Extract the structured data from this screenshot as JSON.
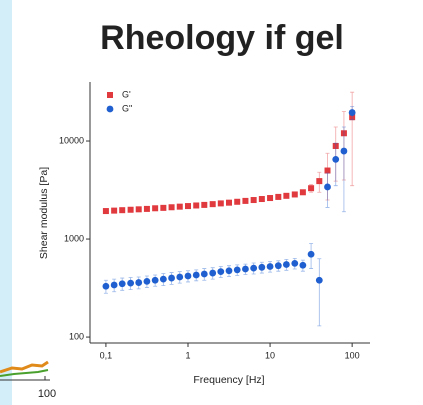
{
  "fragment_label": "100",
  "chart_data": {
    "type": "scatter",
    "title": "Rheology if gel",
    "x_label": "Frequency [Hz]",
    "y_label": "Shear modulus [Pa]",
    "x": [
      0.1,
      0.126,
      0.158,
      0.2,
      0.251,
      0.316,
      0.398,
      0.501,
      0.631,
      0.794,
      1,
      1.26,
      1.58,
      2,
      2.51,
      3.16,
      3.98,
      5.01,
      6.31,
      7.94,
      10,
      12.6,
      15.8,
      20,
      25.1,
      31.6,
      39.8,
      50.1,
      63.1,
      79.4,
      100
    ],
    "series": [
      {
        "name": "G'",
        "color": "#e0393e",
        "marker": "square",
        "values": [
          1930,
          1950,
          1970,
          1990,
          2010,
          2030,
          2060,
          2080,
          2110,
          2140,
          2170,
          2200,
          2230,
          2270,
          2310,
          2350,
          2400,
          2450,
          2500,
          2560,
          2620,
          2690,
          2760,
          2850,
          3000,
          3300,
          3900,
          5000,
          8900,
          12000,
          17500
        ],
        "errors": [
          0,
          0,
          0,
          0,
          0,
          0,
          0,
          0,
          0,
          0,
          0,
          0,
          0,
          0,
          0,
          0,
          0,
          0,
          0,
          0,
          0,
          0,
          0,
          0,
          0,
          300,
          900,
          2500,
          5000,
          8000,
          14000
        ]
      },
      {
        "name": "G\"",
        "color": "#1f5fcf",
        "marker": "circle",
        "values": [
          330,
          340,
          350,
          355,
          360,
          370,
          380,
          390,
          400,
          410,
          420,
          430,
          440,
          450,
          465,
          475,
          485,
          495,
          505,
          515,
          525,
          535,
          550,
          565,
          540,
          700,
          380,
          3400,
          6500,
          7900,
          19500
        ],
        "errors": [
          50,
          50,
          50,
          50,
          50,
          50,
          50,
          55,
          55,
          55,
          55,
          55,
          60,
          60,
          60,
          60,
          60,
          60,
          65,
          65,
          65,
          65,
          70,
          70,
          70,
          200,
          250,
          1300,
          3000,
          6000,
          3000
        ]
      }
    ],
    "xscale": "log",
    "yscale": "log",
    "xlim": [
      0.064,
      165
    ],
    "ylim": [
      87,
      40000
    ],
    "xticks": [
      {
        "value": 0.1,
        "label": "0,1"
      },
      1,
      10,
      100
    ],
    "yticks": [
      100,
      1000,
      10000
    ],
    "legend": "upper left",
    "grid": false
  }
}
